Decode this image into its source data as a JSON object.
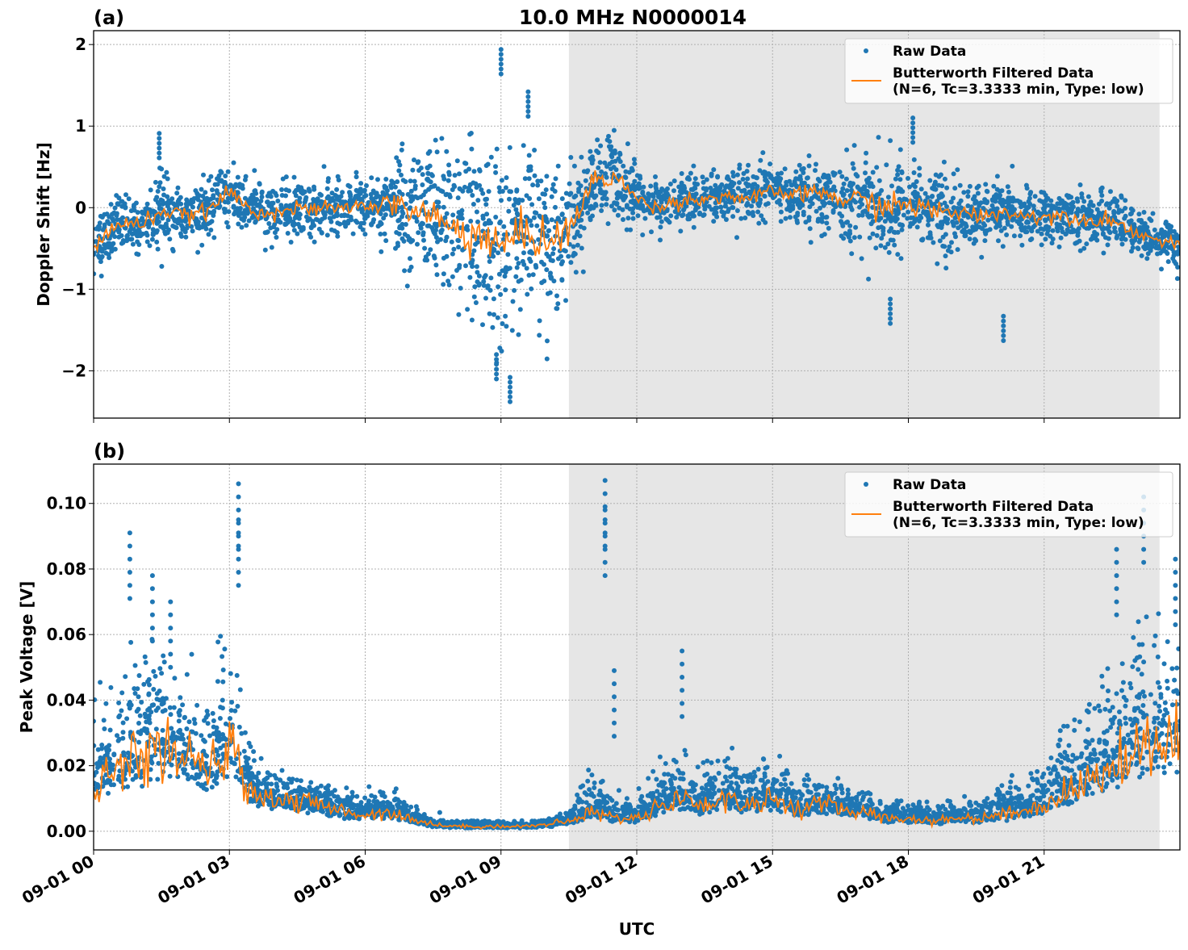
{
  "chart_data": [
    {
      "type": "scatter+line",
      "panel_label": "(a)",
      "title": "10.0 MHz N0000014",
      "xlabel": "",
      "ylabel": "Doppler Shift [Hz]",
      "x_unit": "hours UTC since 09-01 00",
      "xlim": [
        0,
        24
      ],
      "ylim": [
        -2.58,
        2.17
      ],
      "yticks": [
        2,
        1,
        0,
        -1,
        -2
      ],
      "ytick_labels": [
        "2",
        "1",
        "0",
        "−1",
        "−2"
      ],
      "grid": true,
      "legend": {
        "placement": "top-right",
        "entries": [
          "Raw Data",
          "Butterworth Filtered Data",
          "(N=6, Tc=3.3333 min, Type: low)"
        ]
      },
      "shaded_region": [
        10.5,
        23.55
      ],
      "filtered_x": [
        0,
        0.5,
        1,
        1.5,
        2,
        2.5,
        3,
        3.5,
        4,
        4.5,
        5,
        5.5,
        6,
        6.5,
        7,
        7.5,
        8,
        8.5,
        9,
        9.5,
        10,
        10.5,
        11,
        11.5,
        12,
        12.5,
        13,
        13.5,
        14,
        14.5,
        15,
        15.5,
        16,
        16.5,
        17,
        17.5,
        18,
        18.5,
        19,
        19.5,
        20,
        20.5,
        21,
        21.5,
        22,
        22.5,
        23,
        23.5,
        24
      ],
      "filtered_y": [
        -0.5,
        -0.2,
        -0.2,
        -0.05,
        -0.1,
        -0.05,
        0.2,
        -0.05,
        -0.05,
        -0.02,
        -0.02,
        0,
        0.02,
        0.05,
        -0.02,
        -0.1,
        -0.3,
        -0.3,
        -0.5,
        -0.3,
        -0.4,
        -0.3,
        0.3,
        0.4,
        0.1,
        0.0,
        0.1,
        0.1,
        0.15,
        0.1,
        0.2,
        0.15,
        0.2,
        0.1,
        0.1,
        0.0,
        0.05,
        -0.05,
        -0.05,
        -0.1,
        -0.05,
        -0.1,
        -0.1,
        -0.1,
        -0.15,
        -0.15,
        -0.3,
        -0.4,
        -0.45
      ],
      "raw_spread": [
        0.35,
        0.3,
        0.3,
        0.35,
        0.3,
        0.3,
        0.3,
        0.3,
        0.3,
        0.3,
        0.3,
        0.3,
        0.3,
        0.4,
        0.7,
        0.8,
        0.9,
        1.0,
        1.0,
        0.9,
        0.8,
        0.7,
        0.45,
        0.5,
        0.3,
        0.3,
        0.3,
        0.3,
        0.3,
        0.3,
        0.3,
        0.3,
        0.35,
        0.45,
        0.5,
        0.55,
        0.5,
        0.45,
        0.4,
        0.35,
        0.3,
        0.3,
        0.3,
        0.3,
        0.3,
        0.3,
        0.25,
        0.25,
        0.25
      ],
      "raw_outliers": [
        [
          1.45,
          0.91
        ],
        [
          9.0,
          1.94
        ],
        [
          9.2,
          -2.38
        ],
        [
          9.6,
          1.42
        ],
        [
          8.9,
          -2.1
        ],
        [
          18.1,
          1.1
        ],
        [
          20.1,
          -1.63
        ],
        [
          17.6,
          -1.42
        ]
      ]
    },
    {
      "type": "scatter+line",
      "panel_label": "(b)",
      "title": "",
      "xlabel": "UTC",
      "ylabel": "Peak Voltage [V]",
      "x_unit": "hours UTC since 09-01 00",
      "xlim": [
        0,
        24
      ],
      "ylim": [
        -0.0057,
        0.112
      ],
      "yticks": [
        0.0,
        0.02,
        0.04,
        0.06,
        0.08,
        0.1
      ],
      "ytick_labels": [
        "0.00",
        "0.02",
        "0.04",
        "0.06",
        "0.08",
        "0.10"
      ],
      "xticks": [
        0,
        3,
        6,
        9,
        12,
        15,
        18,
        21
      ],
      "xtick_labels": [
        "09-01 00",
        "09-01 03",
        "09-01 06",
        "09-01 09",
        "09-01 12",
        "09-01 15",
        "09-01 18",
        "09-01 21"
      ],
      "grid": true,
      "legend": {
        "placement": "top-right",
        "entries": [
          "Raw Data",
          "Butterworth Filtered Data",
          "(N=6, Tc=3.3333 min, Type: low)"
        ]
      },
      "shaded_region": [
        10.5,
        23.55
      ],
      "filtered_x": [
        0,
        0.5,
        1,
        1.5,
        2,
        2.5,
        3,
        3.5,
        4,
        4.5,
        5,
        5.5,
        6,
        6.5,
        7,
        7.5,
        8,
        8.5,
        9,
        9.5,
        10,
        10.5,
        11,
        11.5,
        12,
        12.5,
        13,
        13.5,
        14,
        14.5,
        15,
        15.5,
        16,
        16.5,
        17,
        17.5,
        18,
        18.5,
        19,
        19.5,
        20,
        20.5,
        21,
        21.5,
        22,
        22.5,
        23,
        23.5,
        24
      ],
      "filtered_y": [
        0.015,
        0.018,
        0.022,
        0.025,
        0.022,
        0.018,
        0.025,
        0.012,
        0.01,
        0.009,
        0.008,
        0.006,
        0.005,
        0.006,
        0.004,
        0.002,
        0.0015,
        0.0015,
        0.0015,
        0.0015,
        0.002,
        0.003,
        0.006,
        0.004,
        0.004,
        0.008,
        0.01,
        0.008,
        0.01,
        0.008,
        0.01,
        0.007,
        0.008,
        0.007,
        0.006,
        0.004,
        0.004,
        0.003,
        0.004,
        0.004,
        0.005,
        0.006,
        0.008,
        0.012,
        0.015,
        0.02,
        0.025,
        0.025,
        0.03
      ],
      "raw_spread": [
        0.012,
        0.015,
        0.018,
        0.017,
        0.015,
        0.013,
        0.018,
        0.007,
        0.005,
        0.005,
        0.004,
        0.004,
        0.004,
        0.004,
        0.003,
        0.001,
        0.001,
        0.001,
        0.001,
        0.001,
        0.001,
        0.002,
        0.006,
        0.004,
        0.004,
        0.006,
        0.007,
        0.006,
        0.007,
        0.006,
        0.007,
        0.005,
        0.005,
        0.004,
        0.004,
        0.003,
        0.003,
        0.003,
        0.003,
        0.003,
        0.004,
        0.005,
        0.007,
        0.01,
        0.012,
        0.016,
        0.02,
        0.02,
        0.022
      ],
      "raw_outliers": [
        [
          0.8,
          0.091
        ],
        [
          1.3,
          0.078
        ],
        [
          1.7,
          0.07
        ],
        [
          3.2,
          0.106
        ],
        [
          3.2,
          0.095
        ],
        [
          11.3,
          0.107
        ],
        [
          11.3,
          0.098
        ],
        [
          11.5,
          0.049
        ],
        [
          13.0,
          0.055
        ],
        [
          23.2,
          0.102
        ],
        [
          22.6,
          0.086
        ],
        [
          23.9,
          0.083
        ]
      ]
    }
  ],
  "colors": {
    "raw": "#1f77b4",
    "filtered": "#ff7f0e",
    "shade": "#e6e6e6"
  }
}
